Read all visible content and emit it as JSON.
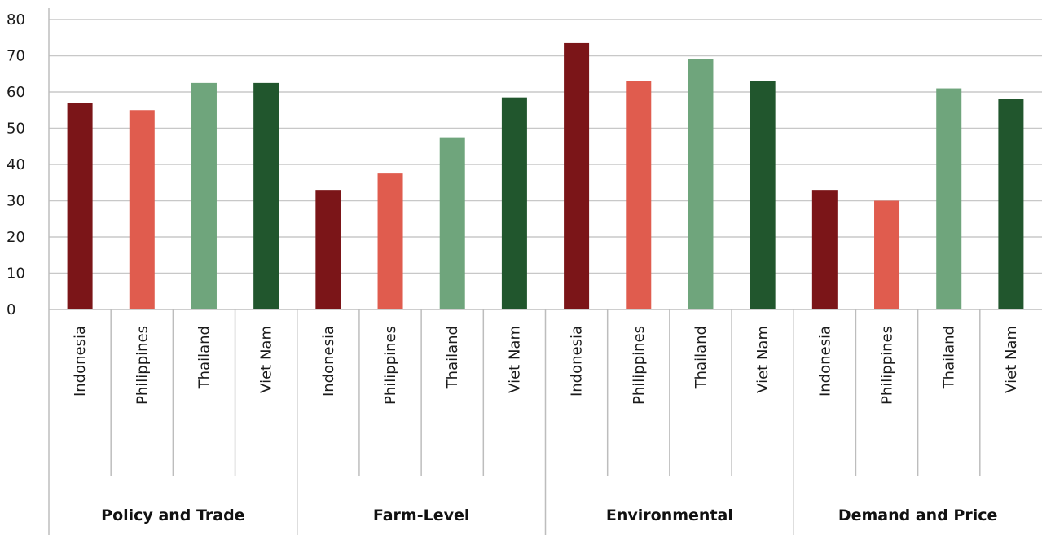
{
  "chart_data": {
    "type": "bar",
    "title": "",
    "xlabel": "",
    "ylabel": "",
    "ylim": [
      0,
      80
    ],
    "yticks": [
      0,
      10,
      20,
      30,
      40,
      50,
      60,
      70,
      80
    ],
    "grid": true,
    "groups": [
      {
        "label": "Policy and Trade",
        "bars": [
          {
            "category": "Indonesia",
            "value": 57
          },
          {
            "category": "Philippines",
            "value": 55
          },
          {
            "category": "Thailand",
            "value": 62.5
          },
          {
            "category": "Viet Nam",
            "value": 62.5
          }
        ]
      },
      {
        "label": "Farm-Level",
        "bars": [
          {
            "category": "Indonesia",
            "value": 33
          },
          {
            "category": "Philippines",
            "value": 37.5
          },
          {
            "category": "Thailand",
            "value": 47.5
          },
          {
            "category": "Viet Nam",
            "value": 58.5
          }
        ]
      },
      {
        "label": "Environmental",
        "bars": [
          {
            "category": "Indonesia",
            "value": 73.5
          },
          {
            "category": "Philippines",
            "value": 63
          },
          {
            "category": "Thailand",
            "value": 69
          },
          {
            "category": "Viet Nam",
            "value": 63
          }
        ]
      },
      {
        "label": "Demand and Price",
        "bars": [
          {
            "category": "Indonesia",
            "value": 33
          },
          {
            "category": "Philippines",
            "value": 30
          },
          {
            "category": "Thailand",
            "value": 61
          },
          {
            "category": "Viet Nam",
            "value": 58
          }
        ]
      }
    ],
    "colors": {
      "Indonesia": "#7b1518",
      "Philippines": "#e05c4e",
      "Thailand": "#6fa57c",
      "Viet Nam": "#21562d"
    }
  }
}
